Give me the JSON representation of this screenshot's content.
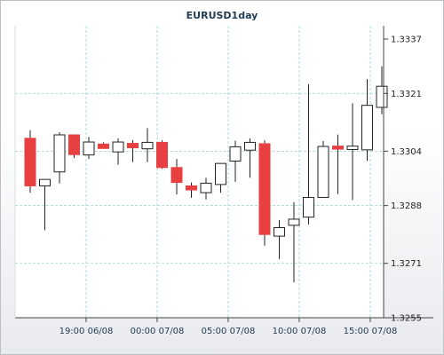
{
  "chart_data": {
    "type": "candlestick",
    "title": "EURUSD1day",
    "y_axis_side": "right",
    "ylim": [
      1.3255,
      1.3337
    ],
    "yticks": [
      "1.3337",
      "1.3321",
      "1.3304",
      "1.3288",
      "1.3271",
      "1.3255"
    ],
    "xtick_labels": [
      "19:00 06/08",
      "00:00 07/08",
      "05:00 07/08",
      "10:00 07/08",
      "15:00 07/08"
    ],
    "grid": true,
    "colors": {
      "bull": "#ffffff",
      "bear": "#e84040",
      "wick": "#222222",
      "grid": "#9ccfd2",
      "plot_bg": "#ffffff",
      "outline": "#222222"
    },
    "candles": [
      {
        "open": 1.33078,
        "high": 1.33102,
        "low": 1.32918,
        "close": 1.32938
      },
      {
        "open": 1.32938,
        "high": 1.32955,
        "low": 1.32808,
        "close": 1.32957
      },
      {
        "open": 1.32979,
        "high": 1.33096,
        "low": 1.32945,
        "close": 1.33088
      },
      {
        "open": 1.33088,
        "high": 1.33082,
        "low": 1.3302,
        "close": 1.3303
      },
      {
        "open": 1.33029,
        "high": 1.33082,
        "low": 1.33017,
        "close": 1.33067
      },
      {
        "open": 1.33061,
        "high": 1.33066,
        "low": 1.33048,
        "close": 1.33048
      },
      {
        "open": 1.33038,
        "high": 1.33078,
        "low": 1.33,
        "close": 1.33067
      },
      {
        "open": 1.33063,
        "high": 1.33073,
        "low": 1.33008,
        "close": 1.3305
      },
      {
        "open": 1.33047,
        "high": 1.33108,
        "low": 1.33008,
        "close": 1.33066
      },
      {
        "open": 1.33066,
        "high": 1.33072,
        "low": 1.32988,
        "close": 1.32992
      },
      {
        "open": 1.32992,
        "high": 1.33017,
        "low": 1.32913,
        "close": 1.32948
      },
      {
        "open": 1.32938,
        "high": 1.32948,
        "low": 1.32903,
        "close": 1.32926
      },
      {
        "open": 1.32918,
        "high": 1.32962,
        "low": 1.32898,
        "close": 1.32946
      },
      {
        "open": 1.32942,
        "high": 1.33002,
        "low": 1.32918,
        "close": 1.33004
      },
      {
        "open": 1.33011,
        "high": 1.33071,
        "low": 1.3295,
        "close": 1.33053
      },
      {
        "open": 1.33043,
        "high": 1.33078,
        "low": 1.32962,
        "close": 1.33066
      },
      {
        "open": 1.33062,
        "high": 1.33072,
        "low": 1.32762,
        "close": 1.32795
      },
      {
        "open": 1.3279,
        "high": 1.32837,
        "low": 1.32723,
        "close": 1.32815
      },
      {
        "open": 1.32822,
        "high": 1.3289,
        "low": 1.32654,
        "close": 1.3284
      },
      {
        "open": 1.32846,
        "high": 1.33237,
        "low": 1.32825,
        "close": 1.32904
      },
      {
        "open": 1.32904,
        "high": 1.3307,
        "low": 1.32904,
        "close": 1.33054
      },
      {
        "open": 1.33055,
        "high": 1.33089,
        "low": 1.32914,
        "close": 1.33046
      },
      {
        "open": 1.33045,
        "high": 1.33181,
        "low": 1.32896,
        "close": 1.33055
      },
      {
        "open": 1.33044,
        "high": 1.33252,
        "low": 1.33012,
        "close": 1.33175
      },
      {
        "open": 1.33169,
        "high": 1.3329,
        "low": 1.33149,
        "close": 1.33231
      }
    ]
  }
}
